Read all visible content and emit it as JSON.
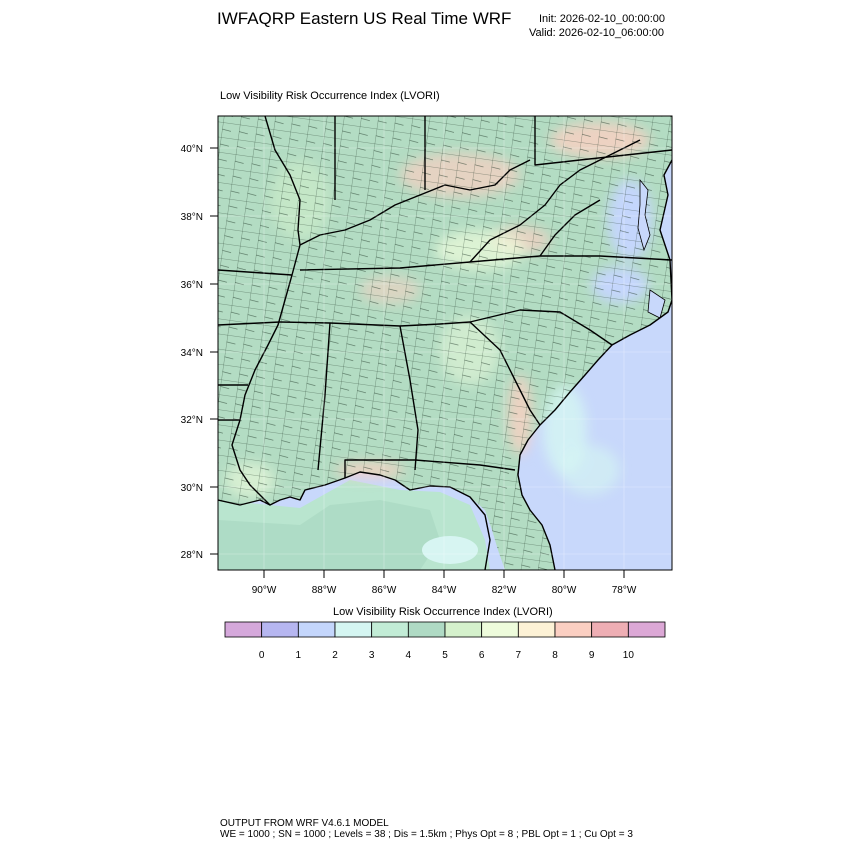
{
  "header": {
    "title": "IWFAQRP Eastern US Real Time WRF",
    "init": "Init: 2026-02-10_00:00:00",
    "valid": "Valid: 2026-02-10_06:00:00"
  },
  "map": {
    "plot_title": "Low Visibility Risk Occurrence Index   (LVORI)",
    "lat_labels": [
      "40°N",
      "38°N",
      "36°N",
      "34°N",
      "32°N",
      "30°N",
      "28°N"
    ],
    "lon_labels": [
      "90°W",
      "88°W",
      "86°W",
      "84°W",
      "82°W",
      "80°W",
      "78°W"
    ],
    "colors": {
      "ocean": "#c8d8fb",
      "gulf": "#b8e6cf",
      "land": "#b3dcc3",
      "state_line": "#000000",
      "county_line": "#1c3324"
    }
  },
  "labelbar": {
    "title": "Low Visibility Risk Occurrence Index  (LVORI)",
    "values": [
      "0",
      "1",
      "2",
      "3",
      "4",
      "5",
      "6",
      "7",
      "8",
      "9",
      "10"
    ],
    "colors": [
      "#d5a8db",
      "#b6b6f0",
      "#c4d6fc",
      "#d5f6f2",
      "#c2ecd6",
      "#afdac4",
      "#d5f1cc",
      "#eefcdc",
      "#fdf2d6",
      "#fbcfc2",
      "#eeaeb4",
      "#dca8d6"
    ]
  },
  "footer": {
    "line1": "OUTPUT FROM WRF V4.6.1 MODEL",
    "line2": "WE = 1000 ; SN = 1000 ; Levels = 38 ; Dis = 1.5km ; Phys Opt = 8 ; PBL Opt = 1 ; Cu Opt = 3"
  }
}
